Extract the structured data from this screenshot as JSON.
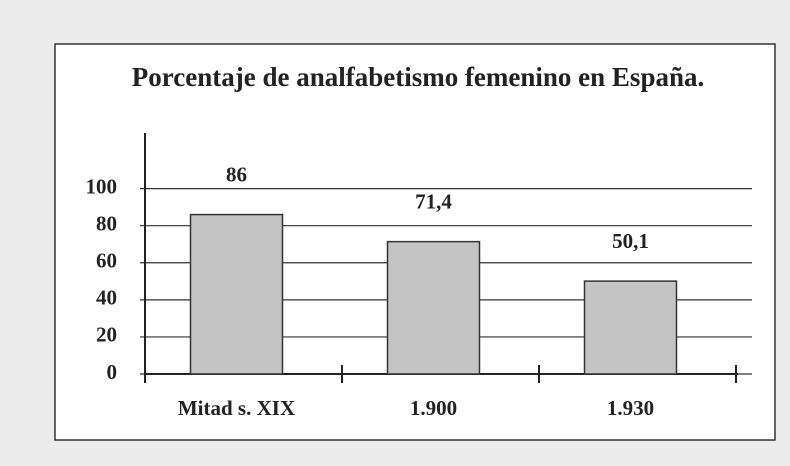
{
  "chart_data": {
    "type": "bar",
    "title": "Porcentaje de analfabetismo femenino en España.",
    "categories": [
      "Mitad s. XIX",
      "1.900",
      "1.930"
    ],
    "values": [
      86,
      71.4,
      50.1
    ],
    "value_labels": [
      "86",
      "71,4",
      "50,1"
    ],
    "color": "#c4c4c4",
    "ylim": [
      0,
      130
    ],
    "yticks": [
      0,
      20,
      40,
      60,
      80,
      100
    ],
    "grid": true
  }
}
